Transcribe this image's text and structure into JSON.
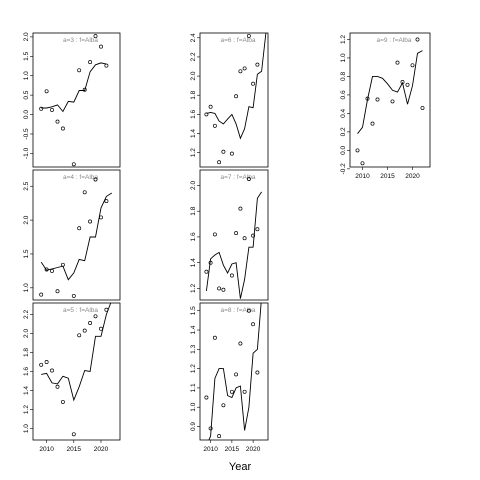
{
  "figure": {
    "xlabel": "Year"
  },
  "chart_data": [
    {
      "type": "scatter",
      "title": "a=3  :  f=Alba",
      "xlim": [
        2007.5,
        2023.5
      ],
      "ylim": [
        -1.35,
        2.1
      ],
      "xticks": [],
      "yticks": [
        -1.0,
        -0.5,
        0.0,
        0.5,
        1.0,
        1.5,
        2.0
      ],
      "points": [
        [
          2009,
          0.15
        ],
        [
          2010,
          0.6
        ],
        [
          2011,
          0.12
        ],
        [
          2012,
          -0.18
        ],
        [
          2013,
          -0.36
        ],
        [
          2015,
          -1.28
        ],
        [
          2016,
          1.14
        ],
        [
          2017,
          0.64
        ],
        [
          2018,
          1.35
        ],
        [
          2019,
          2.02
        ],
        [
          2020,
          1.75
        ],
        [
          2021,
          1.26
        ]
      ],
      "curve": [
        [
          2009,
          0.17
        ],
        [
          2010,
          0.17
        ],
        [
          2011,
          0.2
        ],
        [
          2012,
          0.25
        ],
        [
          2013,
          0.08
        ],
        [
          2014,
          0.34
        ],
        [
          2015,
          0.32
        ],
        [
          2016,
          0.62
        ],
        [
          2017,
          0.62
        ],
        [
          2018,
          1.1
        ],
        [
          2019,
          1.28
        ],
        [
          2020,
          1.33
        ],
        [
          2021,
          1.3
        ]
      ]
    },
    {
      "type": "scatter",
      "title": "a=6  :  f=Alba",
      "xlim": [
        2007.5,
        2023.5
      ],
      "ylim": [
        1.05,
        2.45
      ],
      "xticks": [],
      "yticks": [
        1.2,
        1.4,
        1.6,
        1.8,
        2.0,
        2.2,
        2.4
      ],
      "points": [
        [
          2009,
          1.6
        ],
        [
          2010,
          1.68
        ],
        [
          2011,
          1.48
        ],
        [
          2012,
          1.1
        ],
        [
          2013,
          1.21
        ],
        [
          2015,
          1.19
        ],
        [
          2016,
          1.79
        ],
        [
          2017,
          2.05
        ],
        [
          2018,
          2.08
        ],
        [
          2019,
          2.42
        ],
        [
          2020,
          1.92
        ],
        [
          2021,
          2.12
        ]
      ],
      "curve": [
        [
          2009,
          1.61
        ],
        [
          2010,
          1.62
        ],
        [
          2011,
          1.61
        ],
        [
          2012,
          1.53
        ],
        [
          2013,
          1.5
        ],
        [
          2014,
          1.55
        ],
        [
          2015,
          1.6
        ],
        [
          2016,
          1.5
        ],
        [
          2017,
          1.35
        ],
        [
          2018,
          1.45
        ],
        [
          2019,
          1.68
        ],
        [
          2020,
          1.67
        ],
        [
          2021,
          2.02
        ],
        [
          2022,
          2.05
        ],
        [
          2023,
          2.45
        ]
      ]
    },
    {
      "type": "scatter",
      "title": "a=9  :  f=Alba",
      "xlim": [
        2007.5,
        2023.5
      ],
      "ylim": [
        -0.18,
        1.27
      ],
      "xticks": [
        2010,
        2015,
        2020
      ],
      "yticks": [
        -0.2,
        0.0,
        0.2,
        0.4,
        0.6,
        0.8,
        1.0,
        1.2
      ],
      "points": [
        [
          2009,
          0.0
        ],
        [
          2010,
          -0.14
        ],
        [
          2011,
          0.56
        ],
        [
          2012,
          0.29
        ],
        [
          2013,
          0.55
        ],
        [
          2016,
          0.53
        ],
        [
          2017,
          0.95
        ],
        [
          2018,
          0.74
        ],
        [
          2019,
          0.71
        ],
        [
          2020,
          0.92
        ],
        [
          2021,
          1.2
        ],
        [
          2022,
          0.46
        ]
      ],
      "curve": [
        [
          2009,
          0.18
        ],
        [
          2010,
          0.25
        ],
        [
          2011,
          0.55
        ],
        [
          2012,
          0.8
        ],
        [
          2013,
          0.8
        ],
        [
          2014,
          0.78
        ],
        [
          2015,
          0.72
        ],
        [
          2016,
          0.65
        ],
        [
          2017,
          0.63
        ],
        [
          2018,
          0.73
        ],
        [
          2019,
          0.5
        ],
        [
          2020,
          0.7
        ],
        [
          2021,
          1.05
        ],
        [
          2022,
          1.08
        ]
      ]
    },
    {
      "type": "scatter",
      "title": "a=4  :  f=Alba",
      "xlim": [
        2007.5,
        2023.5
      ],
      "ylim": [
        0.82,
        2.74
      ],
      "xticks": [],
      "yticks": [
        1.0,
        1.5,
        2.0,
        2.5
      ],
      "points": [
        [
          2009,
          0.9
        ],
        [
          2010,
          1.27
        ],
        [
          2011,
          1.25
        ],
        [
          2012,
          0.95
        ],
        [
          2013,
          1.34
        ],
        [
          2015,
          0.88
        ],
        [
          2016,
          1.88
        ],
        [
          2017,
          2.41
        ],
        [
          2018,
          1.98
        ],
        [
          2019,
          2.6
        ],
        [
          2020,
          2.04
        ],
        [
          2021,
          2.28
        ]
      ],
      "curve": [
        [
          2009,
          1.38
        ],
        [
          2010,
          1.26
        ],
        [
          2011,
          1.28
        ],
        [
          2012,
          1.3
        ],
        [
          2013,
          1.32
        ],
        [
          2014,
          1.12
        ],
        [
          2015,
          1.22
        ],
        [
          2016,
          1.42
        ],
        [
          2017,
          1.4
        ],
        [
          2018,
          1.75
        ],
        [
          2019,
          1.75
        ],
        [
          2020,
          2.18
        ],
        [
          2021,
          2.35
        ],
        [
          2022,
          2.4
        ]
      ]
    },
    {
      "type": "scatter",
      "title": "a=7  :  f=Alba",
      "xlim": [
        2007.5,
        2023.5
      ],
      "ylim": [
        1.11,
        2.12
      ],
      "xticks": [],
      "yticks": [
        1.2,
        1.4,
        1.6,
        1.8,
        2.0
      ],
      "points": [
        [
          2009,
          1.33
        ],
        [
          2010,
          1.4
        ],
        [
          2011,
          1.62
        ],
        [
          2012,
          1.2
        ],
        [
          2013,
          1.19
        ],
        [
          2015,
          1.3
        ],
        [
          2016,
          1.63
        ],
        [
          2017,
          1.82
        ],
        [
          2018,
          1.59
        ],
        [
          2019,
          2.05
        ],
        [
          2020,
          1.61
        ],
        [
          2021,
          1.66
        ]
      ],
      "curve": [
        [
          2009,
          1.18
        ],
        [
          2010,
          1.43
        ],
        [
          2011,
          1.46
        ],
        [
          2012,
          1.48
        ],
        [
          2013,
          1.38
        ],
        [
          2014,
          1.32
        ],
        [
          2015,
          1.39
        ],
        [
          2016,
          1.4
        ],
        [
          2017,
          1.12
        ],
        [
          2018,
          1.27
        ],
        [
          2019,
          1.52
        ],
        [
          2020,
          1.52
        ],
        [
          2021,
          1.9
        ],
        [
          2022,
          1.95
        ]
      ]
    },
    {
      "type": "scatter",
      "title": "a=5  :  f=Alba",
      "xlim": [
        2007.5,
        2023.5
      ],
      "ylim": [
        0.88,
        2.32
      ],
      "xticks": [
        2010,
        2015,
        2020
      ],
      "yticks": [
        1.0,
        1.2,
        1.4,
        1.6,
        1.8,
        2.0,
        2.2
      ],
      "points": [
        [
          2009,
          1.67
        ],
        [
          2010,
          1.7
        ],
        [
          2011,
          1.61
        ],
        [
          2012,
          1.44
        ],
        [
          2013,
          1.28
        ],
        [
          2015,
          0.94
        ],
        [
          2016,
          1.98
        ],
        [
          2017,
          2.03
        ],
        [
          2018,
          2.11
        ],
        [
          2019,
          2.18
        ],
        [
          2020,
          2.05
        ],
        [
          2021,
          2.25
        ]
      ],
      "curve": [
        [
          2009,
          1.57
        ],
        [
          2010,
          1.58
        ],
        [
          2011,
          1.48
        ],
        [
          2012,
          1.47
        ],
        [
          2013,
          1.55
        ],
        [
          2014,
          1.53
        ],
        [
          2015,
          1.3
        ],
        [
          2016,
          1.44
        ],
        [
          2017,
          1.61
        ],
        [
          2018,
          1.6
        ],
        [
          2019,
          1.97
        ],
        [
          2020,
          1.97
        ],
        [
          2021,
          2.2
        ],
        [
          2022,
          2.35
        ]
      ]
    },
    {
      "type": "scatter",
      "title": "a=8  :  f=Alba",
      "xlim": [
        2007.5,
        2023.5
      ],
      "ylim": [
        0.83,
        1.54
      ],
      "xticks": [
        2010,
        2015,
        2020
      ],
      "yticks": [
        0.9,
        1.0,
        1.1,
        1.2,
        1.3,
        1.4,
        1.5
      ],
      "points": [
        [
          2009,
          1.05
        ],
        [
          2010,
          0.89
        ],
        [
          2011,
          1.36
        ],
        [
          2012,
          0.85
        ],
        [
          2013,
          1.01
        ],
        [
          2015,
          1.08
        ],
        [
          2016,
          1.17
        ],
        [
          2017,
          1.33
        ],
        [
          2018,
          1.08
        ],
        [
          2019,
          1.5
        ],
        [
          2020,
          1.43
        ],
        [
          2021,
          1.18
        ]
      ],
      "curve": [
        [
          2009,
          0.8
        ],
        [
          2010,
          0.85
        ],
        [
          2011,
          1.15
        ],
        [
          2012,
          1.2
        ],
        [
          2013,
          1.2
        ],
        [
          2014,
          1.06
        ],
        [
          2015,
          1.05
        ],
        [
          2016,
          1.1
        ],
        [
          2017,
          1.11
        ],
        [
          2018,
          0.88
        ],
        [
          2019,
          1.0
        ],
        [
          2020,
          1.28
        ],
        [
          2021,
          1.3
        ],
        [
          2022,
          1.57
        ]
      ]
    }
  ]
}
